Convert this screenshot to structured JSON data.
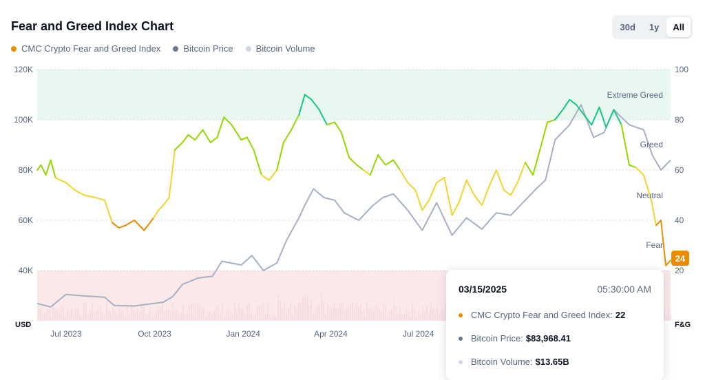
{
  "header": {
    "title": "Fear and Greed Index Chart",
    "ranges": [
      {
        "label": "30d",
        "active": false
      },
      {
        "label": "1y",
        "active": false
      },
      {
        "label": "All",
        "active": true
      }
    ]
  },
  "legend": [
    {
      "label": "CMC Crypto Fear and Greed Index",
      "color": "#ea8c00"
    },
    {
      "label": "Bitcoin Price",
      "color": "#6b7a90"
    },
    {
      "label": "Bitcoin Volume",
      "color": "#cfd6e4"
    }
  ],
  "tooltip": {
    "date": "03/15/2025",
    "time": "05:30:00 AM",
    "rows": [
      {
        "label": "CMC Crypto Fear and Greed Index:",
        "value": "22",
        "color": "#ea8c00"
      },
      {
        "label": "Bitcoin Price:",
        "value": "$83,968.41",
        "color": "#6b7a90"
      },
      {
        "label": "Bitcoin Volume:",
        "value": "$13.65B",
        "color": "#cfd6e4"
      }
    ]
  },
  "chart_data": {
    "type": "line",
    "x_ticks": [
      "Jul 2023",
      "Oct 2023",
      "Jan 2024",
      "Apr 2024",
      "Jul 2024"
    ],
    "left_axis": {
      "label": "USD",
      "ticks": [
        "120K",
        "100K",
        "80K",
        "60K",
        "40K"
      ],
      "ylim": [
        20000,
        120000
      ]
    },
    "right_axis": {
      "label": "F&G",
      "ticks": [
        "100",
        "80",
        "60",
        "40",
        "20"
      ],
      "ylim": [
        0,
        100
      ]
    },
    "zones": [
      "Extreme Greed",
      "Greed",
      "Neutral",
      "Fear"
    ],
    "current_badge": "24",
    "colors": {
      "extreme_greed": "#16c784",
      "greed": "#93d900",
      "neutral": "#f3d42f",
      "fear": "#ea8c00",
      "extreme_fear": "#ea3943",
      "price": "#a6b0c3",
      "volume": "#f1d6da"
    },
    "x_range": [
      "2023-06-01",
      "2025-03-20"
    ],
    "series": [
      {
        "name": "CMC Crypto Fear and Greed Index",
        "axis": "right",
        "x": [
          "2023-06-01",
          "2023-06-05",
          "2023-06-10",
          "2023-06-15",
          "2023-06-20",
          "2023-06-25",
          "2023-07-01",
          "2023-07-10",
          "2023-07-20",
          "2023-08-01",
          "2023-08-10",
          "2023-08-18",
          "2023-08-25",
          "2023-09-01",
          "2023-09-10",
          "2023-09-20",
          "2023-09-30",
          "2023-10-05",
          "2023-10-10",
          "2023-10-16",
          "2023-10-22",
          "2023-10-30",
          "2023-11-05",
          "2023-11-12",
          "2023-11-20",
          "2023-11-28",
          "2023-12-05",
          "2023-12-12",
          "2023-12-20",
          "2023-12-30",
          "2024-01-05",
          "2024-01-12",
          "2024-01-20",
          "2024-01-28",
          "2024-02-05",
          "2024-02-12",
          "2024-02-20",
          "2024-02-28",
          "2024-03-05",
          "2024-03-12",
          "2024-03-20",
          "2024-03-28",
          "2024-04-05",
          "2024-04-12",
          "2024-04-20",
          "2024-04-28",
          "2024-05-05",
          "2024-05-12",
          "2024-05-20",
          "2024-05-28",
          "2024-06-05",
          "2024-06-12",
          "2024-06-20",
          "2024-06-28",
          "2024-07-05",
          "2024-07-12",
          "2024-07-20",
          "2024-07-28",
          "2024-08-05",
          "2024-08-12",
          "2024-08-20",
          "2024-08-28",
          "2024-09-05",
          "2024-09-12",
          "2024-09-20",
          "2024-09-28",
          "2024-10-05",
          "2024-10-12",
          "2024-10-20",
          "2024-10-28",
          "2024-11-05",
          "2024-11-12",
          "2024-11-20",
          "2024-11-28",
          "2024-12-05",
          "2024-12-12",
          "2024-12-20",
          "2024-12-28",
          "2025-01-05",
          "2025-01-12",
          "2025-01-20",
          "2025-01-28",
          "2025-02-05",
          "2025-02-12",
          "2025-02-20",
          "2025-02-28",
          "2025-03-05",
          "2025-03-10",
          "2025-03-15",
          "2025-03-20"
        ],
        "values": [
          60,
          62,
          58,
          64,
          57,
          56,
          55,
          52,
          50,
          49,
          48,
          39,
          37,
          38,
          40,
          36,
          41,
          44,
          46,
          49,
          68,
          71,
          74,
          72,
          76,
          71,
          73,
          81,
          78,
          72,
          73,
          68,
          58,
          56,
          60,
          71,
          76,
          82,
          90,
          88,
          84,
          78,
          79,
          75,
          65,
          62,
          60,
          58,
          66,
          62,
          64,
          60,
          55,
          52,
          44,
          48,
          55,
          57,
          42,
          47,
          56,
          50,
          46,
          53,
          60,
          52,
          50,
          55,
          63,
          58,
          69,
          79,
          80,
          84,
          88,
          86,
          82,
          78,
          85,
          77,
          84,
          78,
          62,
          61,
          58,
          48,
          38,
          40,
          22,
          24
        ]
      },
      {
        "name": "Bitcoin Price",
        "axis": "left",
        "x": [
          "2023-06-01",
          "2023-06-15",
          "2023-07-01",
          "2023-07-20",
          "2023-08-10",
          "2023-08-20",
          "2023-09-10",
          "2023-09-30",
          "2023-10-10",
          "2023-10-20",
          "2023-10-30",
          "2023-11-15",
          "2023-11-30",
          "2023-12-10",
          "2023-12-30",
          "2024-01-10",
          "2024-01-22",
          "2024-02-05",
          "2024-02-15",
          "2024-02-28",
          "2024-03-05",
          "2024-03-14",
          "2024-03-25",
          "2024-04-05",
          "2024-04-15",
          "2024-04-30",
          "2024-05-15",
          "2024-05-25",
          "2024-06-05",
          "2024-06-20",
          "2024-07-05",
          "2024-07-20",
          "2024-08-05",
          "2024-08-20",
          "2024-09-05",
          "2024-09-20",
          "2024-10-05",
          "2024-10-20",
          "2024-10-30",
          "2024-11-10",
          "2024-11-20",
          "2024-12-05",
          "2024-12-17",
          "2024-12-30",
          "2025-01-10",
          "2025-01-20",
          "2025-02-05",
          "2025-02-20",
          "2025-03-01",
          "2025-03-10",
          "2025-03-20"
        ],
        "values": [
          26900,
          25500,
          30500,
          29900,
          29400,
          26100,
          25900,
          26900,
          27400,
          29700,
          34500,
          37000,
          37700,
          43700,
          42200,
          46000,
          40000,
          43000,
          52000,
          61000,
          66000,
          72500,
          69000,
          68000,
          63000,
          60000,
          66000,
          69000,
          70500,
          64000,
          56000,
          67000,
          54000,
          61000,
          56500,
          63000,
          62000,
          68000,
          72000,
          76000,
          92000,
          98000,
          106000,
          93000,
          95000,
          104000,
          98000,
          96000,
          86000,
          80000,
          84000
        ]
      }
    ]
  }
}
